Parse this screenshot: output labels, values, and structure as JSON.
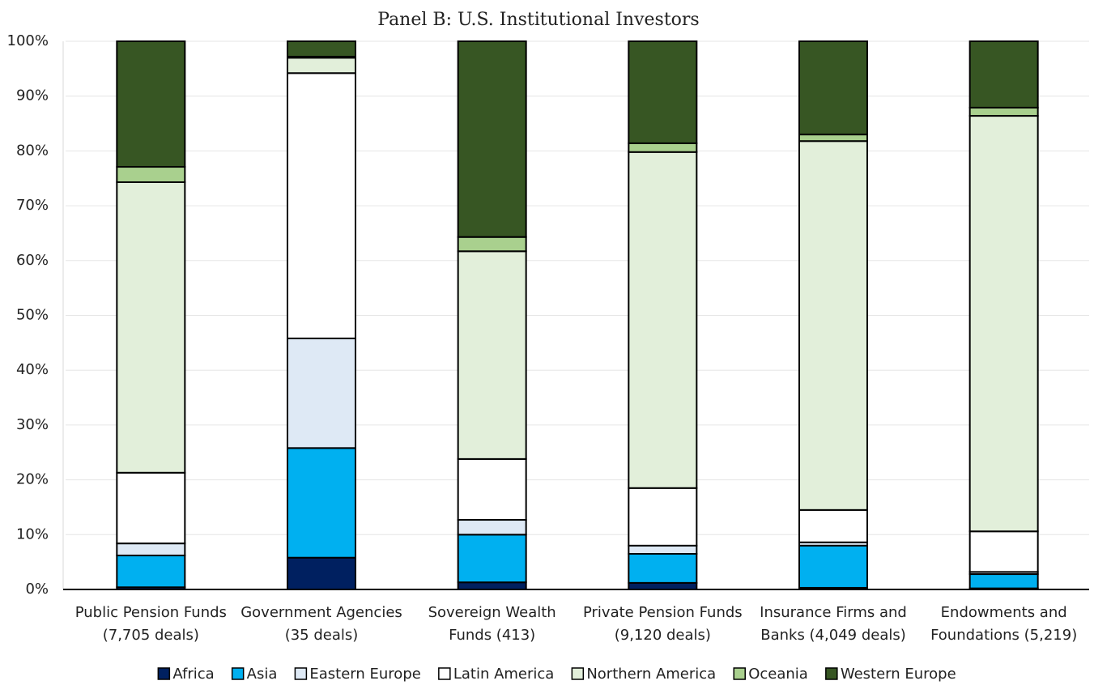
{
  "chart_data": {
    "type": "stacked_bar",
    "title": "Panel B: U.S. Institutional Investors",
    "categories": [
      [
        "Public Pension Funds",
        "(7,705 deals)"
      ],
      [
        "Government Agencies",
        "(35 deals)"
      ],
      [
        "Sovereign Wealth",
        "Funds (413)"
      ],
      [
        "Private Pension Funds",
        "(9,120 deals)"
      ],
      [
        "Insurance Firms and",
        "Banks (4,049 deals)"
      ],
      [
        "Endowments and",
        "Foundations (5,219)"
      ]
    ],
    "series": [
      {
        "name": "Africa",
        "color": "#002060",
        "values": [
          0.4,
          5.8,
          1.3,
          1.2,
          0.3,
          0.2
        ]
      },
      {
        "name": "Asia",
        "color": "#00b0f0",
        "values": [
          5.8,
          20.0,
          8.7,
          5.3,
          7.7,
          2.6
        ]
      },
      {
        "name": "Eastern Europe",
        "color": "#dee9f5",
        "values": [
          2.2,
          20.0,
          2.7,
          1.5,
          0.6,
          0.4
        ]
      },
      {
        "name": "Latin America",
        "color": "#ffffff",
        "values": [
          12.9,
          48.4,
          11.1,
          10.5,
          5.9,
          7.4
        ]
      },
      {
        "name": "Northern America",
        "color": "#e2efda",
        "values": [
          53.0,
          2.8,
          37.9,
          61.3,
          67.3,
          75.8
        ]
      },
      {
        "name": "Oceania",
        "color": "#a9d08e",
        "values": [
          2.8,
          0.2,
          2.6,
          1.6,
          1.2,
          1.5
        ]
      },
      {
        "name": "Western Europe",
        "color": "#375623",
        "values": [
          22.9,
          2.8,
          35.7,
          18.6,
          17.0,
          12.1
        ]
      }
    ],
    "ylim": [
      0,
      100
    ],
    "yticks": [
      {
        "value": 0,
        "label": "0%"
      },
      {
        "value": 10,
        "label": "10%"
      },
      {
        "value": 20,
        "label": "20%"
      },
      {
        "value": 30,
        "label": "30%"
      },
      {
        "value": 40,
        "label": "40%"
      },
      {
        "value": 50,
        "label": "50%"
      },
      {
        "value": 60,
        "label": "60%"
      },
      {
        "value": 70,
        "label": "70%"
      },
      {
        "value": 80,
        "label": "80%"
      },
      {
        "value": 90,
        "label": "90%"
      },
      {
        "value": 100,
        "label": "100%"
      }
    ],
    "grid": true,
    "legend": "bottom"
  }
}
